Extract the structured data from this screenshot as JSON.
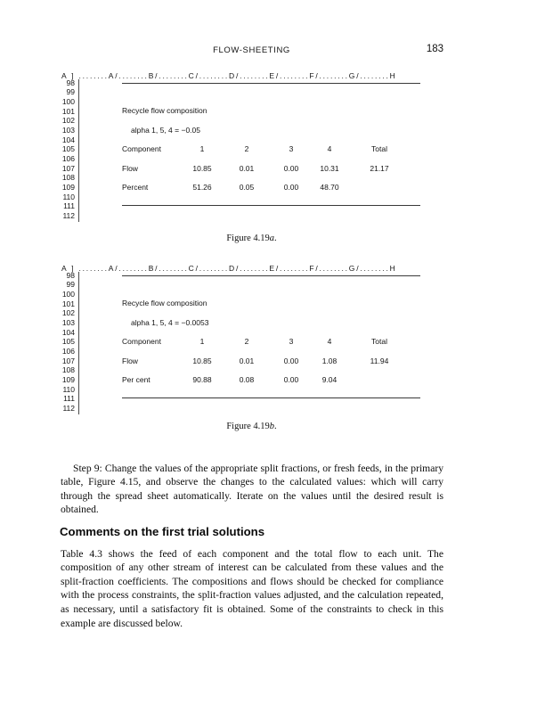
{
  "page": {
    "running_head": "FLOW-SHEETING",
    "page_number": "183"
  },
  "sheet_common": {
    "column_header": "A ] ........A/........B/........C/........D/........E/........F/........G/........H",
    "row_numbers": [
      "98",
      "99",
      "100",
      "101",
      "102",
      "103",
      "104",
      "105",
      "106",
      "107",
      "108",
      "109",
      "110",
      "111",
      "112"
    ]
  },
  "figures": [
    {
      "title": "Recycle flow composition",
      "alpha": "alpha 1, 5, 4 = −0.05",
      "table": {
        "columns": [
          "Component",
          "1",
          "2",
          "3",
          "4",
          "Total"
        ],
        "flow_label": "Flow",
        "flow_values": [
          "10.85",
          "0.01",
          "0.00",
          "10.31",
          "21.17"
        ],
        "percent_label": "Percent",
        "percent_values": [
          "51.26",
          "0.05",
          "0.00",
          "48.70",
          ""
        ]
      },
      "caption_prefix": "Figure 4.19",
      "caption_letter": "a",
      "caption_period": "."
    },
    {
      "title": "Recycle flow composition",
      "alpha": "alpha 1, 5, 4 = −0.0053",
      "table": {
        "columns": [
          "Component",
          "1",
          "2",
          "3",
          "4",
          "Total"
        ],
        "flow_label": "Flow",
        "flow_values": [
          "10.85",
          "0.01",
          "0.00",
          "1.08",
          "11.94"
        ],
        "percent_label": "Per cent",
        "percent_values": [
          "90.88",
          "0.08",
          "0.00",
          "9.04",
          ""
        ]
      },
      "caption_prefix": "Figure 4.19",
      "caption_letter": "b",
      "caption_period": "."
    }
  ],
  "body": {
    "step9_paragraph": "Step 9: Change the values of the appropriate split fractions, or fresh feeds, in the primary table, Figure 4.15, and observe the changes to the calculated values: which will carry through the spread sheet automatically. Iterate on the values until the desired result is obtained.",
    "section_heading": "Comments on the first trial solutions",
    "comments_paragraph": "Table 4.3 shows the feed of each component and the total flow to each unit. The composition of any other stream of interest can be calculated from these values and the split-fraction coefficients. The compositions and flows should be checked for compliance with the process constraints, the split-fraction values adjusted, and the calculation repeated, as necessary, until a satisfactory fit is obtained. Some of the constraints to check in this example are discussed below."
  }
}
